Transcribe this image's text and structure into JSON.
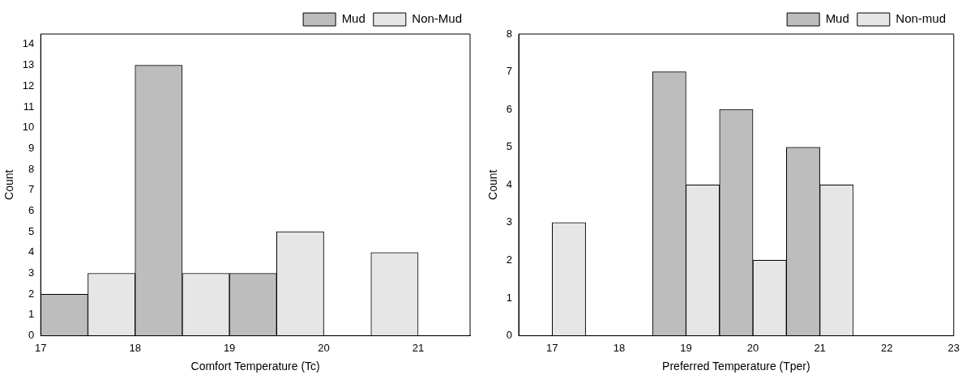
{
  "chart_data": [
    {
      "type": "histogram",
      "xlabel": "Comfort Temperature (Tc)",
      "ylabel": "Count",
      "bins": [
        17,
        17.5,
        18,
        18.5,
        19,
        19.5,
        20,
        20.5,
        21
      ],
      "xlim": [
        17,
        21.55
      ],
      "xticks": [
        17,
        18,
        19,
        20,
        21
      ],
      "ylim": [
        0,
        14.5
      ],
      "yticks": [
        0,
        1,
        2,
        3,
        4,
        5,
        6,
        7,
        8,
        9,
        10,
        11,
        12,
        13,
        14
      ],
      "legend": "top right",
      "grid": false,
      "series": [
        {
          "name": "Mud",
          "color": "#bdbdbd",
          "values": [
            2,
            null,
            13,
            null,
            3,
            null,
            null,
            null
          ]
        },
        {
          "name": "Non-Mud",
          "color": "#e6e6e6",
          "values": [
            null,
            3,
            null,
            3,
            null,
            5,
            null,
            4
          ]
        }
      ]
    },
    {
      "type": "histogram",
      "xlabel": "Preferred Temperature (Tper)",
      "ylabel": "Count",
      "bins": [
        17,
        17.5,
        18,
        18.5,
        19,
        19.5,
        20,
        20.5,
        21,
        21.5
      ],
      "xlim": [
        16.5,
        23
      ],
      "xticks": [
        17,
        18,
        19,
        20,
        21,
        22,
        23
      ],
      "ylim": [
        0,
        8
      ],
      "yticks": [
        0,
        1,
        2,
        3,
        4,
        5,
        6,
        7,
        8
      ],
      "legend": "top right",
      "grid": false,
      "series": [
        {
          "name": "Mud",
          "color": "#bdbdbd",
          "values": [
            null,
            null,
            null,
            7,
            null,
            6,
            null,
            5,
            null
          ]
        },
        {
          "name": "Non-mud",
          "color": "#e6e6e6",
          "values": [
            3,
            null,
            null,
            null,
            4,
            null,
            2,
            null,
            4
          ]
        }
      ]
    }
  ]
}
